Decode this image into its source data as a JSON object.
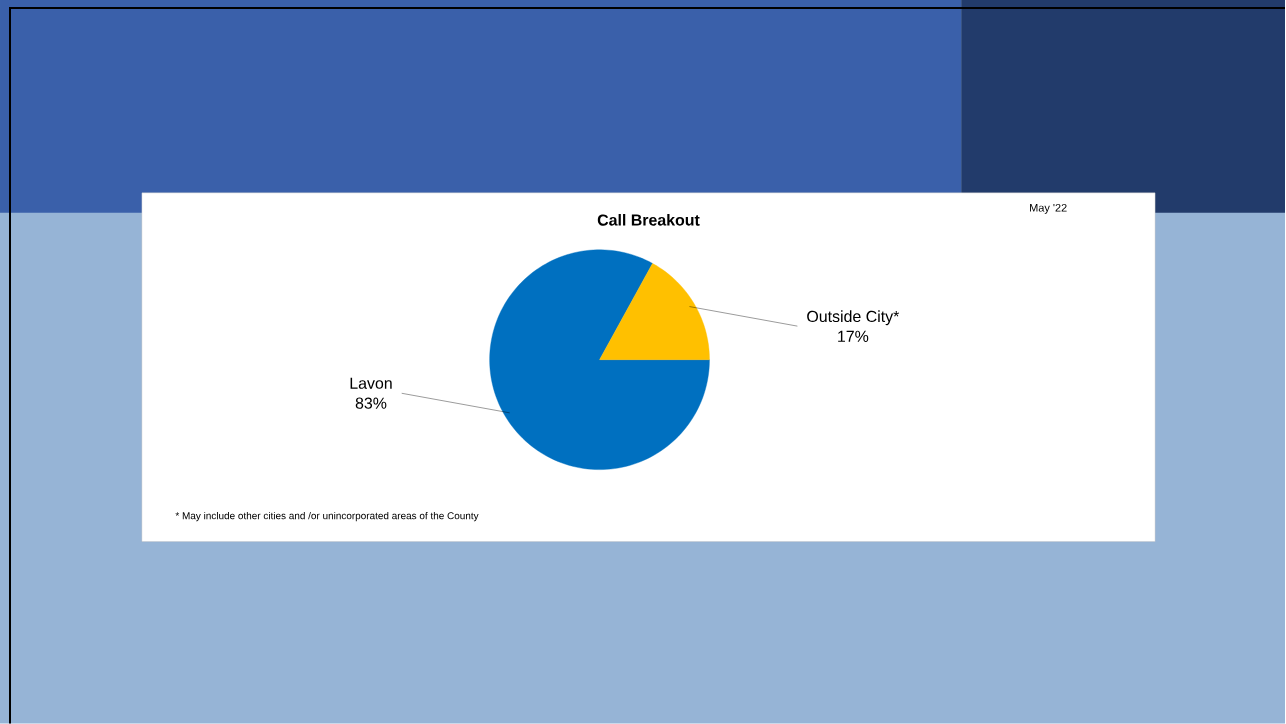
{
  "chart_data": {
    "type": "pie",
    "title": "Call Breakout",
    "subtitle": "May '22",
    "categories": [
      "Lavon",
      "Outside City*"
    ],
    "values": [
      83,
      17
    ],
    "value_labels": [
      "83%",
      "17%"
    ],
    "colors": [
      "#0070c0",
      "#ffc000"
    ],
    "annotations": [
      "* May include  other cities  and /or unincorporated areas of the County"
    ]
  }
}
